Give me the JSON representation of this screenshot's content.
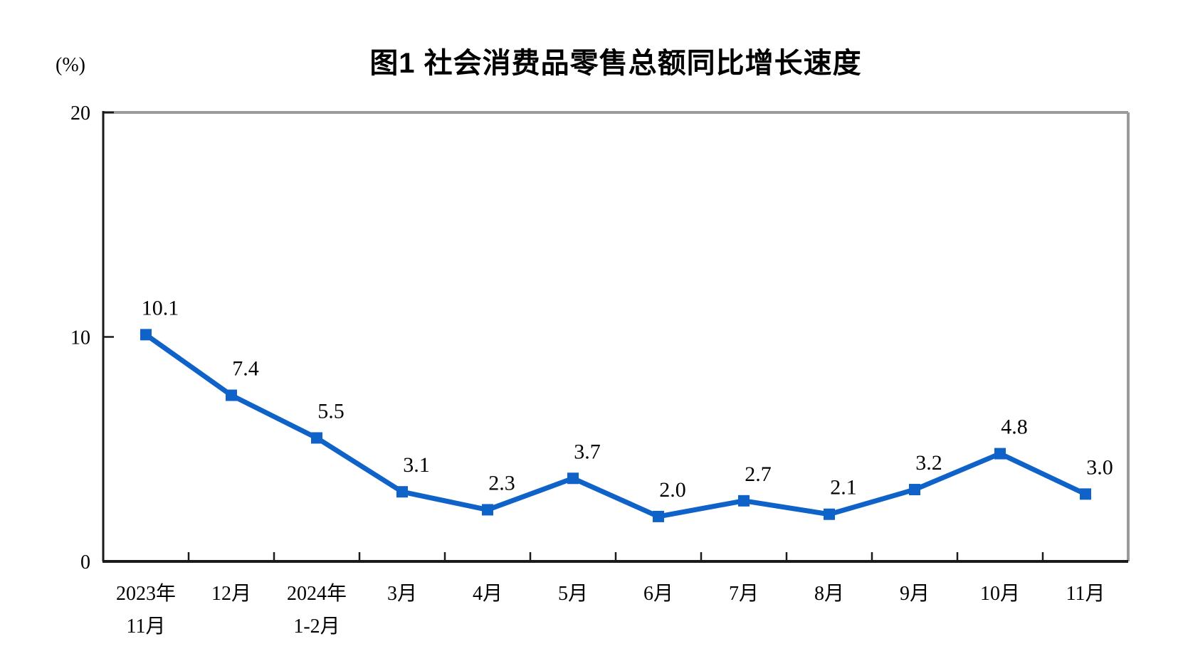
{
  "page": {
    "background": "#ffffff"
  },
  "chart_data": {
    "type": "line",
    "title": "图1 社会消费品零售总额同比增长速度",
    "unit_label": "(%)",
    "categories": [
      "2023年\n11月",
      "12月",
      "2024年\n1-2月",
      "3月",
      "4月",
      "5月",
      "6月",
      "7月",
      "8月",
      "9月",
      "10月",
      "11月"
    ],
    "values": [
      10.1,
      7.4,
      5.5,
      3.1,
      2.3,
      3.7,
      2.0,
      2.7,
      2.1,
      3.2,
      4.8,
      3.0
    ],
    "point_labels": [
      "10.1",
      "7.4",
      "5.5",
      "3.1",
      "2.3",
      "3.7",
      "2.0",
      "2.7",
      "2.1",
      "3.2",
      "4.8",
      "3.0"
    ],
    "ylim": [
      0,
      20
    ],
    "yticks": [
      0,
      10,
      20
    ],
    "grid": false,
    "legend": "none",
    "marker": "square",
    "colors": {
      "line": "#0f63c8",
      "marker": "#0f63c8",
      "axis": "#1a1a1a",
      "frame": "#9a9a9a",
      "text": "#000000"
    }
  }
}
